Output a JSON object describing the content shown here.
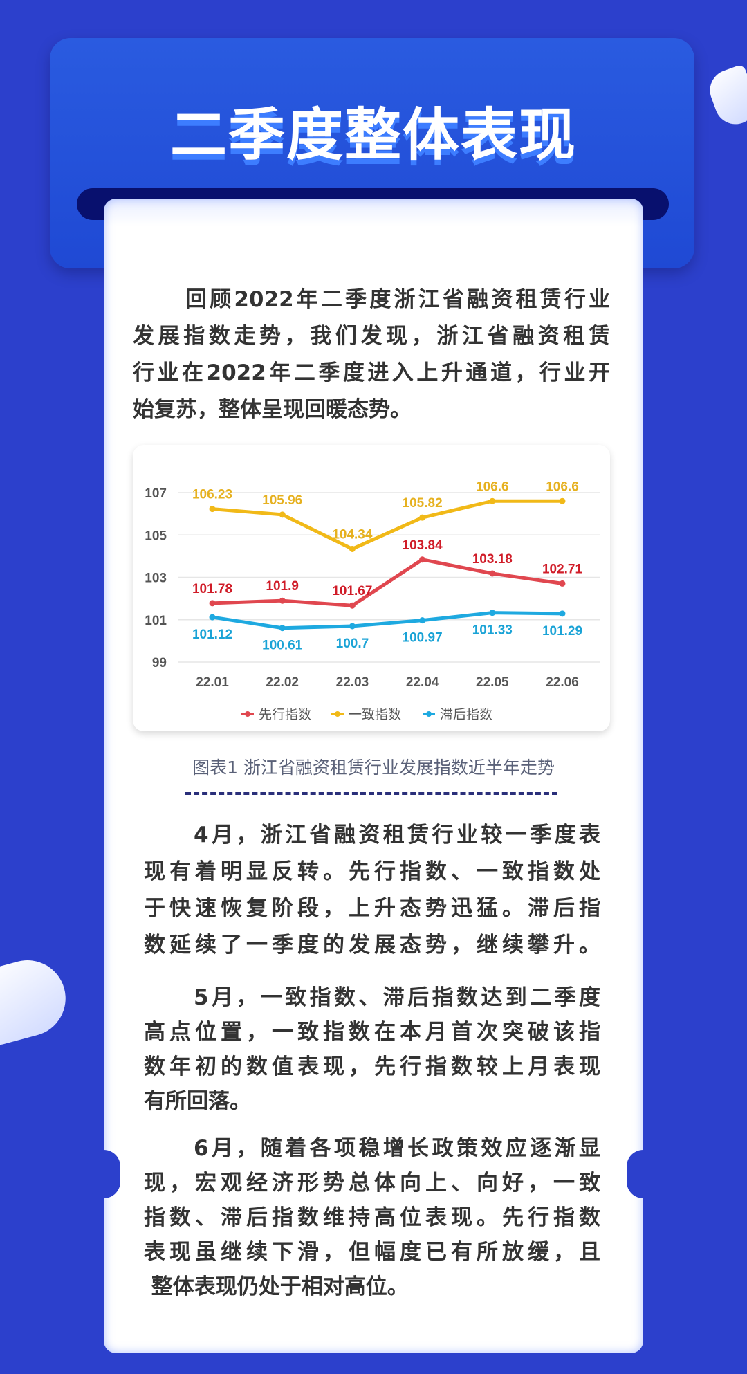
{
  "header": {
    "title": "二季度整体表现"
  },
  "paragraphs": [
    {
      "lines": [
        "回顾2022年二季度浙江省融资租赁行业",
        "发展指数走势，我们发现，浙江省融资租赁",
        "行业在2022年二季度进入上升通道，行业开",
        "始复苏，整体呈现回暖态势。"
      ]
    },
    {
      "lines": [
        "4月，浙江省融资租赁行业较一季度表",
        "现有着明显反转。先行指数、一致指数处",
        "于快速恢复阶段，上升态势迅猛。滞后指",
        "数延续了一季度的发展态势，继续攀升。"
      ]
    },
    {
      "lines": [
        "5月，一致指数、滞后指数达到二季度",
        "高点位置，一致指数在本月首次突破该指",
        "数年初的数值表现，先行指数较上月表现",
        "有所回落。"
      ]
    },
    {
      "lines": [
        "6月，随着各项稳增长政策效应逐渐显",
        "现，宏观经济形势总体向上、向好，一致",
        "指数、滞后指数维持高位表现。先行指数",
        "表现虽继续下滑，但幅度已有所放缓，且",
        " 整体表现仍处于相对高位。"
      ]
    }
  ],
  "figure": {
    "caption": "图表1 浙江省融资租赁行业发展指数近半年走势"
  },
  "chart_data": {
    "type": "line",
    "categories": [
      "22.01",
      "22.02",
      "22.03",
      "22.04",
      "22.05",
      "22.06"
    ],
    "ylim": [
      99,
      107
    ],
    "yticks": [
      99,
      101,
      103,
      105,
      107
    ],
    "grid": true,
    "legend_position": "bottom",
    "series": [
      {
        "name": "先行指数",
        "color": "#e0474f",
        "label_color": "#d01c28",
        "values": [
          101.78,
          101.9,
          101.67,
          103.84,
          103.18,
          102.71
        ],
        "labels": [
          "101.78",
          "101.9",
          "101.67",
          "103.84",
          "103.18",
          "102.71"
        ]
      },
      {
        "name": "一致指数",
        "color": "#f1b918",
        "label_color": "#e6b120",
        "values": [
          106.23,
          105.96,
          104.34,
          105.82,
          106.6,
          106.6
        ],
        "labels": [
          "106.23",
          "105.96",
          "104.34",
          "105.82",
          "106.6",
          "106.6"
        ]
      },
      {
        "name": "滞后指数",
        "color": "#1ea9e0",
        "label_color": "#1aa3d6",
        "values": [
          101.12,
          100.61,
          100.7,
          100.97,
          101.33,
          101.29
        ],
        "labels": [
          "101.12",
          "100.61",
          "100.7",
          "100.97",
          "101.33",
          "101.29"
        ]
      }
    ]
  },
  "colors": {
    "background": "#2c40cc",
    "header": "#2254d8",
    "slot": "#08106e",
    "text": "#333333"
  }
}
